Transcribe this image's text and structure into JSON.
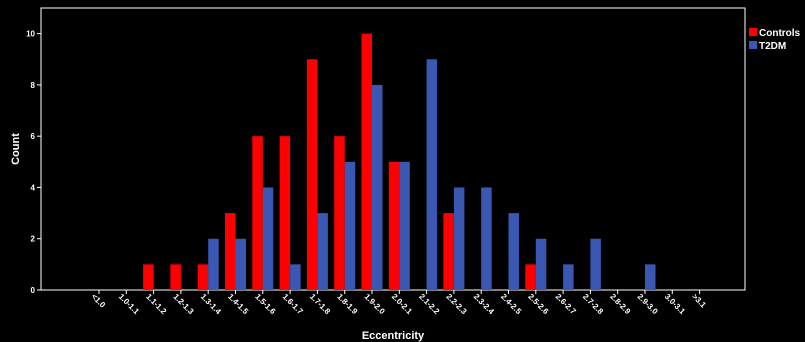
{
  "colors": {
    "background": "#000000",
    "axis": "#ffffff",
    "controls": "#ff0000",
    "t2dm": "#3a57b3"
  },
  "chart_data": {
    "type": "bar",
    "title": "",
    "xlabel": "Eccentricity",
    "ylabel": "Count",
    "ylim": [
      0,
      11
    ],
    "yticks": [
      0,
      2,
      4,
      6,
      8,
      10
    ],
    "grid": false,
    "legend_position": "top-right",
    "categories": [
      "<1.0",
      "1.0-1.1",
      "1.1-1.2",
      "1.2-1.3",
      "1.3-1.4",
      "1.4-1.5",
      "1.5-1.6",
      "1.6-1.7",
      "1.7-1.8",
      "1.8-1.9",
      "1.9-2.0",
      "2.0-2.1",
      "2.1-2.2",
      "2.2-2.3",
      "2.3-2.4",
      "2.4-2.5",
      "2.5-2.6",
      "2.6-2.7",
      "2.7-2.8",
      "2.8-2.9",
      "2.9-3.0",
      "3.0-3.1",
      ">3.1"
    ],
    "series": [
      {
        "name": "Controls",
        "color": "#ff0000",
        "values": [
          0,
          0,
          1,
          1,
          1,
          3,
          6,
          6,
          9,
          6,
          10,
          5,
          0,
          3,
          0,
          0,
          1,
          0,
          0,
          0,
          0,
          0,
          0
        ]
      },
      {
        "name": "T2DM",
        "color": "#3a57b3",
        "values": [
          0,
          0,
          0,
          0,
          2,
          2,
          4,
          1,
          3,
          5,
          8,
          5,
          9,
          4,
          4,
          3,
          2,
          1,
          2,
          0,
          1,
          0,
          0
        ]
      }
    ]
  }
}
